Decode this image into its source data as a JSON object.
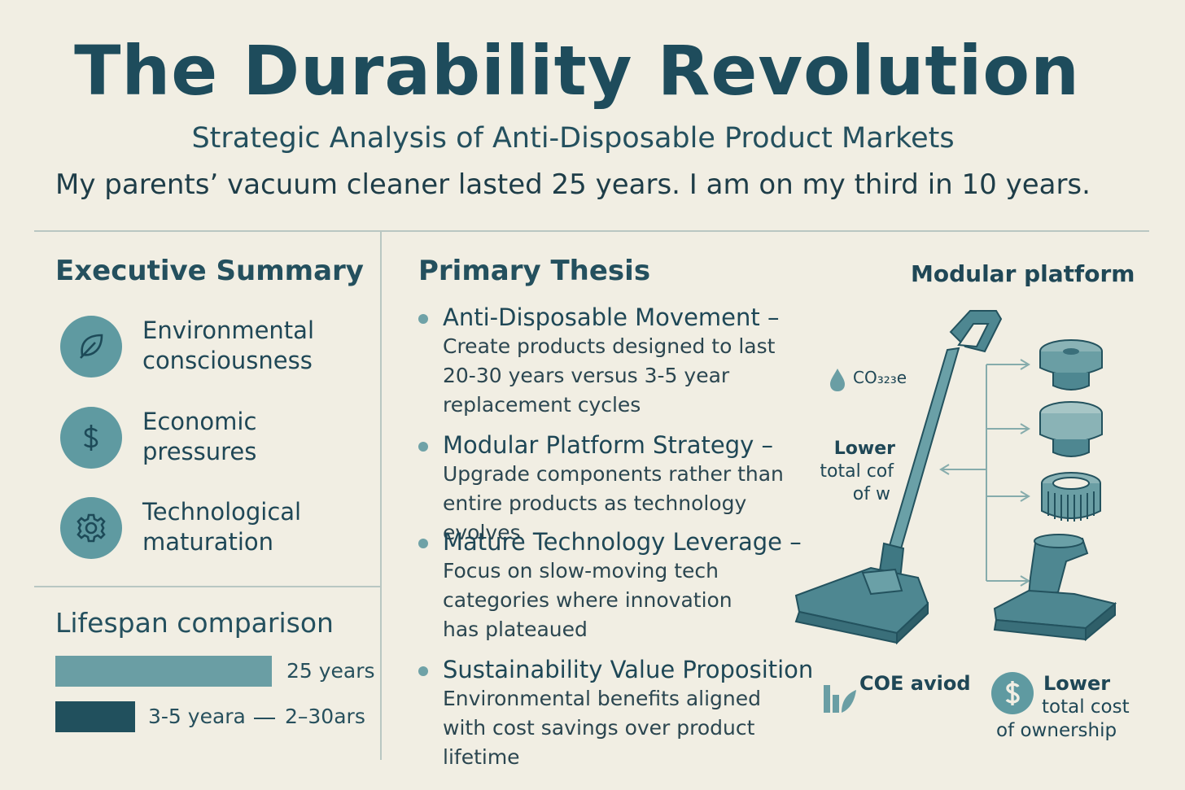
{
  "header": {
    "title": "The Durability Revolution",
    "subtitle": "Strategic Analysis of Anti-Disposable Product Markets",
    "tagline": "My parents’ vacuum cleaner lasted 25 years. I am on my third in 10 years."
  },
  "executive_summary": {
    "heading": "Executive Summary",
    "items": [
      {
        "icon": "leaf-icon",
        "line1": "Environmental",
        "line2": "consciousness"
      },
      {
        "icon": "dollar-icon",
        "line1": "Economic",
        "line2": "pressures"
      },
      {
        "icon": "gear-icon",
        "line1": "Technological",
        "line2": "maturation"
      }
    ]
  },
  "lifespan": {
    "heading": "Lifespan comparison",
    "bars": [
      {
        "label": "25 years",
        "color": "#6a9ea4"
      },
      {
        "label": "3-5 yeara",
        "range_label": "2–30ars",
        "color": "#21505d"
      }
    ]
  },
  "thesis": {
    "heading": "Primary Thesis",
    "bullets": [
      {
        "title": "Anti-Disposable Movement",
        "dash": " –",
        "desc": "Create products designed to last 20-30 years versus 3-5 year replacement cycles"
      },
      {
        "title": "Modular Platform Strategy",
        "dash": " –",
        "desc": "Upgrade components rather than entire products as technology evolves"
      },
      {
        "title": "Mature Technology Leverage",
        "dash": " –",
        "desc": "Focus on slow-moving tech categories where innovation has plateaued"
      },
      {
        "title": "Sustainability Value Proposition",
        "dash": "",
        "desc": "Environmental benefits aligned with cost savings over product lifetime"
      }
    ]
  },
  "illustration": {
    "heading": "Modular platform",
    "co2_label": "CO₃₂₃e",
    "lower_label_1": "Lower",
    "lower_label_2": "total cof",
    "lower_label_3": "of w",
    "coe_label": "COE aviod",
    "cost_label_1": "Lower",
    "cost_label_2": "total cost",
    "cost_label_3": "of ownership"
  },
  "colors": {
    "background": "#f1eee3",
    "primary": "#1e4c5c",
    "accent": "#5f9aa1"
  }
}
